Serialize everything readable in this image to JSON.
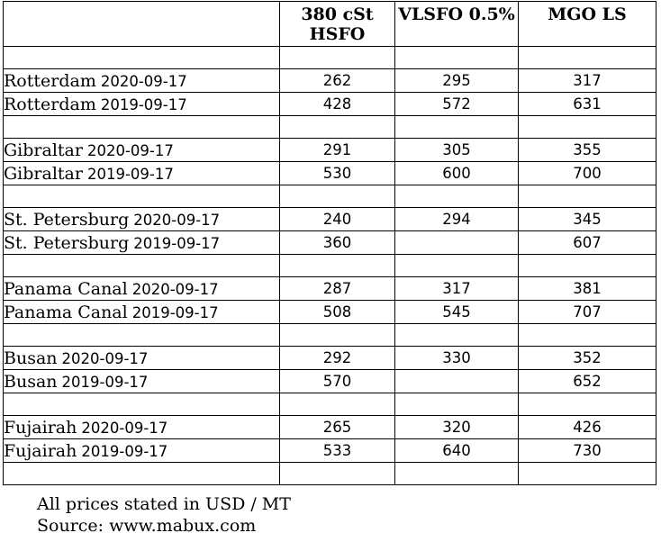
{
  "table": {
    "headers": [
      "",
      "380 cSt HSFO",
      "VLSFO 0.5%",
      "MGO LS"
    ],
    "groups": [
      {
        "location": "Rotterdam",
        "rows": [
          {
            "date": "2020-09-17",
            "hsfo": "262",
            "vlsfo": "295",
            "mgo": "317"
          },
          {
            "date": "2019-09-17",
            "hsfo": "428",
            "vlsfo": "572",
            "mgo": "631"
          }
        ]
      },
      {
        "location": "Gibraltar",
        "rows": [
          {
            "date": "2020-09-17",
            "hsfo": "291",
            "vlsfo": "305",
            "mgo": "355"
          },
          {
            "date": "2019-09-17",
            "hsfo": "530",
            "vlsfo": "600",
            "mgo": "700"
          }
        ]
      },
      {
        "location": "St. Petersburg",
        "rows": [
          {
            "date": "2020-09-17",
            "hsfo": "240",
            "vlsfo": "294",
            "mgo": "345"
          },
          {
            "date": "2019-09-17",
            "hsfo": "360",
            "vlsfo": "",
            "mgo": "607"
          }
        ]
      },
      {
        "location": "Panama Canal",
        "rows": [
          {
            "date": "2020-09-17",
            "hsfo": "287",
            "vlsfo": "317",
            "mgo": "381"
          },
          {
            "date": "2019-09-17",
            "hsfo": "508",
            "vlsfo": "545",
            "mgo": "707"
          }
        ]
      },
      {
        "location": "Busan",
        "rows": [
          {
            "date": "2020-09-17",
            "hsfo": "292",
            "vlsfo": "330",
            "mgo": "352"
          },
          {
            "date": "2019-09-17",
            "hsfo": "570",
            "vlsfo": "",
            "mgo": "652"
          }
        ]
      },
      {
        "location": "Fujairah",
        "rows": [
          {
            "date": "2020-09-17",
            "hsfo": "265",
            "vlsfo": "320",
            "mgo": "426"
          },
          {
            "date": "2019-09-17",
            "hsfo": "533",
            "vlsfo": "640",
            "mgo": "730"
          }
        ]
      }
    ]
  },
  "notes": {
    "line1": "All prices stated in USD / MT",
    "line2": "Source: www.mabux.com"
  }
}
